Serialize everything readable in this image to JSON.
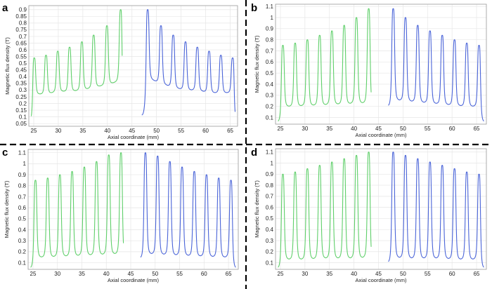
{
  "colors": {
    "green_series": "#5fcf6a",
    "blue_series": "#4a64d8"
  },
  "chart_data": [
    {
      "panel": "a",
      "type": "line",
      "xlabel": "Axial coordinate (mm)",
      "ylabel": "Magnetic flux density   (T)",
      "xlim": [
        24,
        66.5
      ],
      "ylim": [
        0.03,
        0.93
      ],
      "xticks": [
        25,
        30,
        35,
        40,
        45,
        50,
        55,
        60,
        65
      ],
      "yticks": [
        0.05,
        0.1,
        0.15,
        0.2,
        0.25,
        0.3,
        0.35,
        0.4,
        0.45,
        0.5,
        0.55,
        0.6,
        0.65,
        0.7,
        0.75,
        0.8,
        0.85,
        0.9
      ],
      "grid": true,
      "series": [
        {
          "color": "green",
          "x_range": [
            24.5,
            43.0
          ],
          "edge_start": 0.07,
          "edge_end": 0.11,
          "peaks_x": [
            25.1,
            27.5,
            29.9,
            32.3,
            34.8,
            37.2,
            39.9,
            42.7
          ],
          "peaks_y": [
            0.54,
            0.56,
            0.59,
            0.62,
            0.66,
            0.71,
            0.78,
            0.9
          ],
          "valleys_y": [
            0.27,
            0.27,
            0.29,
            0.29,
            0.3,
            0.32,
            0.34,
            0.37
          ]
        },
        {
          "color": "blue",
          "x_range": [
            47.0,
            66.0
          ],
          "edge_start": 0.11,
          "edge_end": 0.07,
          "peaks_x": [
            48.2,
            50.9,
            53.4,
            55.9,
            58.3,
            60.7,
            63.1,
            65.5
          ],
          "peaks_y": [
            0.9,
            0.78,
            0.71,
            0.66,
            0.62,
            0.59,
            0.56,
            0.54
          ],
          "valleys_y": [
            0.39,
            0.35,
            0.32,
            0.3,
            0.3,
            0.28,
            0.28,
            0.28
          ]
        }
      ]
    },
    {
      "panel": "b",
      "type": "line",
      "xlabel": "Axial coordinate (mm)",
      "ylabel": "Magnetic flux density   (T)",
      "xlim": [
        24,
        67
      ],
      "ylim": [
        0.04,
        1.12
      ],
      "xticks": [
        25,
        30,
        35,
        40,
        45,
        50,
        55,
        60,
        65
      ],
      "yticks": [
        0.1,
        0.2,
        0.3,
        0.4,
        0.5,
        0.6,
        0.7,
        0.8,
        0.9,
        1,
        1.1
      ],
      "grid": true,
      "series": [
        {
          "color": "green",
          "x_range": [
            24.5,
            43.5
          ],
          "edge_start": 0.06,
          "edge_end": 0.2,
          "peaks_x": [
            25.5,
            28.0,
            30.5,
            33.0,
            35.5,
            38.0,
            40.5,
            43.0
          ],
          "peaks_y": [
            0.75,
            0.77,
            0.8,
            0.84,
            0.88,
            0.93,
            1.0,
            1.08
          ],
          "valleys_y": [
            0.2,
            0.2,
            0.21,
            0.21,
            0.22,
            0.22,
            0.23,
            0.23
          ]
        },
        {
          "color": "blue",
          "x_range": [
            47.0,
            66.5
          ],
          "edge_start": 0.2,
          "edge_end": 0.06,
          "peaks_x": [
            48.0,
            50.5,
            53.0,
            55.5,
            58.0,
            60.5,
            63.0,
            65.5
          ],
          "peaks_y": [
            1.08,
            1.0,
            0.93,
            0.88,
            0.84,
            0.8,
            0.77,
            0.75
          ],
          "valleys_y": [
            0.26,
            0.25,
            0.24,
            0.23,
            0.22,
            0.21,
            0.2,
            0.2
          ]
        }
      ]
    },
    {
      "panel": "c",
      "type": "line",
      "xlabel": "Axial coordinate (mm)",
      "ylabel": "Magnetic flux density   (T)",
      "xlim": [
        24,
        67
      ],
      "ylim": [
        0.04,
        1.13
      ],
      "xticks": [
        25,
        30,
        35,
        40,
        45,
        50,
        55,
        60,
        65
      ],
      "yticks": [
        0.1,
        0.2,
        0.3,
        0.4,
        0.5,
        0.6,
        0.7,
        0.8,
        0.9,
        1,
        1.1
      ],
      "grid": true,
      "series": [
        {
          "color": "green",
          "x_range": [
            24.5,
            43.5
          ],
          "edge_start": 0.05,
          "edge_end": 0.14,
          "peaks_x": [
            25.5,
            28.0,
            30.5,
            33.0,
            35.5,
            38.0,
            40.5,
            43.0
          ],
          "peaks_y": [
            0.85,
            0.87,
            0.9,
            0.93,
            0.97,
            1.02,
            1.08,
            1.1
          ],
          "valleys_y": [
            0.15,
            0.15,
            0.16,
            0.16,
            0.17,
            0.17,
            0.18,
            0.18
          ]
        },
        {
          "color": "blue",
          "x_range": [
            47.0,
            66.5
          ],
          "edge_start": 0.14,
          "edge_end": 0.05,
          "peaks_x": [
            48.0,
            50.5,
            53.0,
            55.5,
            58.0,
            60.5,
            63.0,
            65.5
          ],
          "peaks_y": [
            1.1,
            1.07,
            1.02,
            0.97,
            0.93,
            0.9,
            0.87,
            0.85
          ],
          "valleys_y": [
            0.18,
            0.18,
            0.17,
            0.17,
            0.16,
            0.16,
            0.15,
            0.15
          ]
        }
      ]
    },
    {
      "panel": "d",
      "type": "line",
      "xlabel": "Axial coordinate (mm)",
      "ylabel": "Magnetic flux density   (T)",
      "xlim": [
        24,
        67
      ],
      "ylim": [
        0.04,
        1.13
      ],
      "xticks": [
        25,
        30,
        35,
        40,
        45,
        50,
        55,
        60,
        65
      ],
      "yticks": [
        0.1,
        0.2,
        0.3,
        0.4,
        0.5,
        0.6,
        0.7,
        0.8,
        0.9,
        1,
        1.1
      ],
      "grid": true,
      "series": [
        {
          "color": "green",
          "x_range": [
            24.5,
            43.5
          ],
          "edge_start": 0.05,
          "edge_end": 0.1,
          "peaks_x": [
            25.5,
            28.0,
            30.5,
            33.0,
            35.5,
            38.0,
            40.5,
            43.0
          ],
          "peaks_y": [
            0.9,
            0.92,
            0.95,
            0.98,
            1.01,
            1.04,
            1.07,
            1.1
          ],
          "valleys_y": [
            0.13,
            0.13,
            0.13,
            0.14,
            0.14,
            0.14,
            0.14,
            0.15
          ]
        },
        {
          "color": "blue",
          "x_range": [
            47.0,
            66.5
          ],
          "edge_start": 0.1,
          "edge_end": 0.05,
          "peaks_x": [
            48.0,
            50.5,
            53.0,
            55.5,
            58.0,
            60.5,
            63.0,
            65.5
          ],
          "peaks_y": [
            1.1,
            1.07,
            1.04,
            1.01,
            0.98,
            0.95,
            0.92,
            0.9
          ],
          "valleys_y": [
            0.15,
            0.14,
            0.14,
            0.14,
            0.14,
            0.13,
            0.13,
            0.13
          ]
        }
      ]
    }
  ]
}
